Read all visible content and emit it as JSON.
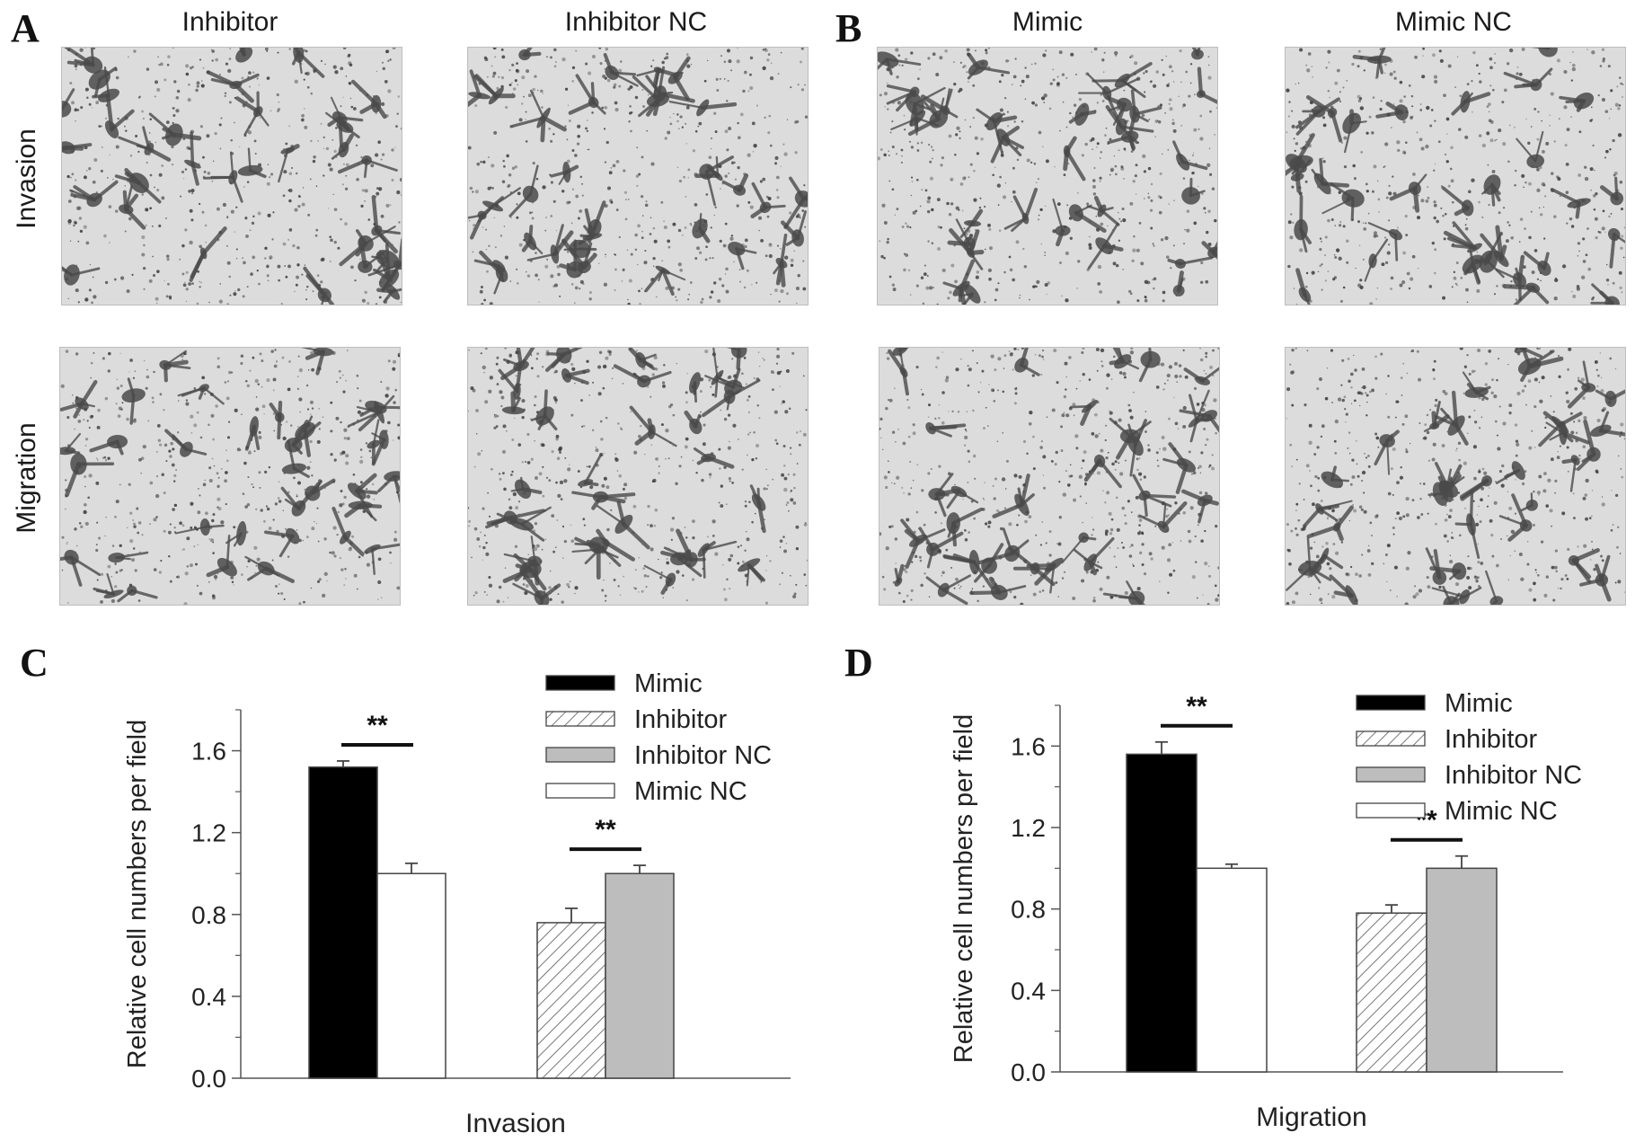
{
  "panels": {
    "A": {
      "letter": "A",
      "columns": [
        "Inhibitor",
        "Inhibitor NC"
      ],
      "rows": [
        "Invasion",
        "Migration"
      ]
    },
    "B": {
      "letter": "B",
      "columns": [
        "Mimic",
        "Mimic NC"
      ]
    },
    "C": {
      "letter": "C"
    },
    "D": {
      "letter": "D"
    }
  },
  "micrograph_style": {
    "background": "#dcdcdc",
    "cell_color": "#4a4a4a",
    "speck_color": "#333333"
  },
  "chart_data": [
    {
      "type": "bar",
      "panel": "C",
      "xlabel": "Invasion",
      "ylabel": "Relative cell numbers per field",
      "ylim": [
        0,
        1.8
      ],
      "yticks": [
        "0.0",
        "0.4",
        "0.8",
        "1.2",
        "1.6"
      ],
      "legend_position": "top-right",
      "series": [
        {
          "name": "Mimic",
          "value": 1.52,
          "error": 0.03,
          "fill": "#000000",
          "pattern": "solid",
          "group": 0
        },
        {
          "name": "Mimic NC",
          "value": 1.0,
          "error": 0.05,
          "fill": "#ffffff",
          "pattern": "solid",
          "group": 0
        },
        {
          "name": "Inhibitor",
          "value": 0.76,
          "error": 0.07,
          "fill": "#ffffff",
          "pattern": "hatch",
          "group": 1
        },
        {
          "name": "Inhibitor NC",
          "value": 1.0,
          "error": 0.04,
          "fill": "#bdbdbd",
          "pattern": "solid",
          "group": 1
        }
      ],
      "legend": [
        "Mimic",
        "Inhibitor",
        "Inhibitor NC",
        "Mimic NC"
      ],
      "significance": [
        {
          "group": 0,
          "label": "**"
        },
        {
          "group": 1,
          "label": "**"
        }
      ]
    },
    {
      "type": "bar",
      "panel": "D",
      "xlabel": "Migration",
      "ylabel": "Relative cell numbers per field",
      "ylim": [
        0,
        1.8
      ],
      "yticks": [
        "0.0",
        "0.4",
        "0.8",
        "1.2",
        "1.6"
      ],
      "legend_position": "top-right",
      "series": [
        {
          "name": "Mimic",
          "value": 1.56,
          "error": 0.06,
          "fill": "#000000",
          "pattern": "solid",
          "group": 0
        },
        {
          "name": "Mimic NC",
          "value": 1.0,
          "error": 0.02,
          "fill": "#ffffff",
          "pattern": "solid",
          "group": 0
        },
        {
          "name": "Inhibitor",
          "value": 0.78,
          "error": 0.04,
          "fill": "#ffffff",
          "pattern": "hatch",
          "group": 1
        },
        {
          "name": "Inhibitor NC",
          "value": 1.0,
          "error": 0.06,
          "fill": "#bdbdbd",
          "pattern": "solid",
          "group": 1
        }
      ],
      "legend": [
        "Mimic",
        "Inhibitor",
        "Inhibitor NC",
        "Mimic NC"
      ],
      "significance": [
        {
          "group": 0,
          "label": "**"
        },
        {
          "group": 1,
          "label": "**"
        }
      ]
    }
  ]
}
